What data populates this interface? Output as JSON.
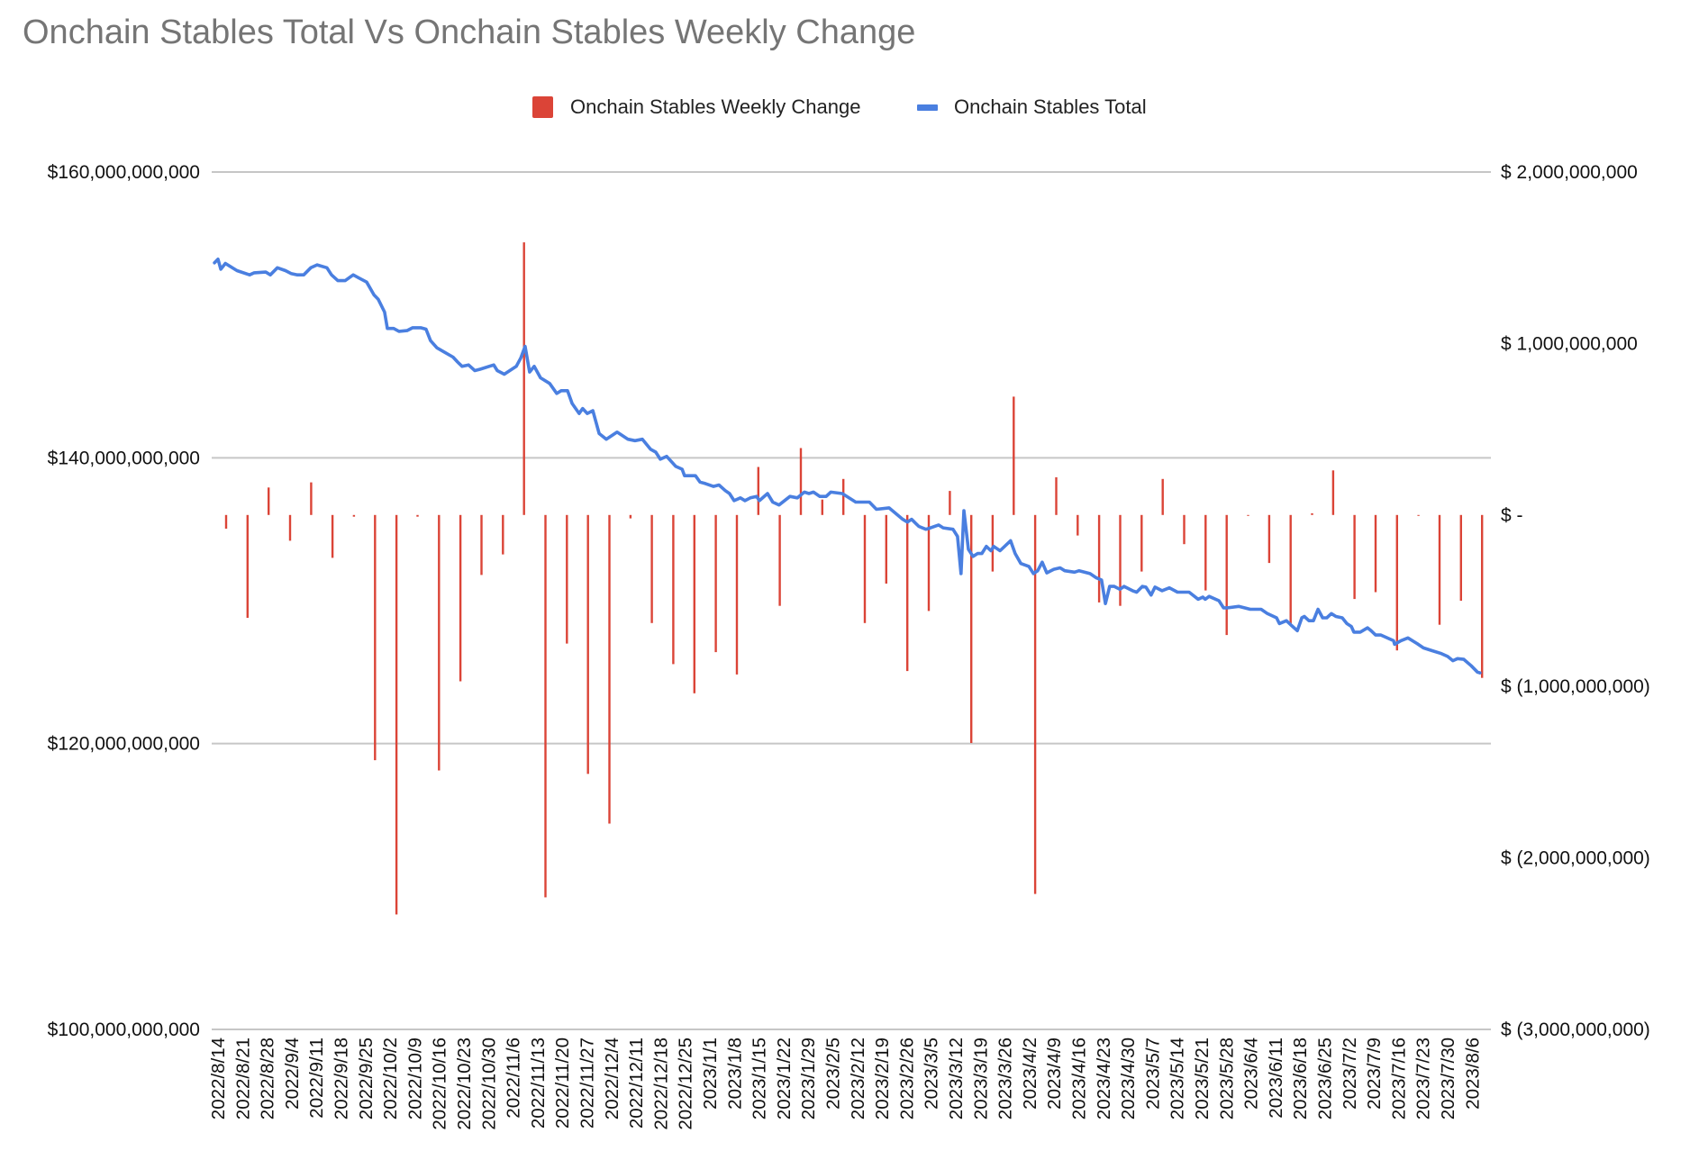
{
  "chart_data": {
    "type": "bar+line",
    "title": "Onchain Stables Total Vs Onchain Stables Weekly Change",
    "legend": {
      "position": "top",
      "entries": [
        {
          "name": "Onchain Stables Weekly Change",
          "color": "#db4437",
          "marker": "square"
        },
        {
          "name": "Onchain Stables Total",
          "color": "#4a7fe0",
          "marker": "line"
        }
      ]
    },
    "grid": true,
    "x_axis": {
      "unit": "days since 2022/8/14",
      "tick_labels": [
        "2022/8/14",
        "2022/8/21",
        "2022/8/28",
        "2022/9/4",
        "2022/9/11",
        "2022/9/18",
        "2022/9/25",
        "2022/10/2",
        "2022/10/9",
        "2022/10/16",
        "2022/10/23",
        "2022/10/30",
        "2022/11/6",
        "2022/11/13",
        "2022/11/20",
        "2022/11/27",
        "2022/12/4",
        "2022/12/11",
        "2022/12/18",
        "2022/12/25",
        "2023/1/1",
        "2023/1/8",
        "2023/1/15",
        "2023/1/22",
        "2023/1/29",
        "2023/2/5",
        "2023/2/12",
        "2023/2/19",
        "2023/2/26",
        "2023/3/5",
        "2023/3/12",
        "2023/3/19",
        "2023/3/26",
        "2023/4/2",
        "2023/4/9",
        "2023/4/16",
        "2023/4/23",
        "2023/4/30",
        "2023/5/7",
        "2023/5/14",
        "2023/5/21",
        "2023/5/28",
        "2023/6/4",
        "2023/6/11",
        "2023/6/18",
        "2023/6/25",
        "2023/7/2",
        "2023/7/9",
        "2023/7/16",
        "2023/7/23",
        "2023/7/30",
        "2023/8/6"
      ],
      "range": [
        -1.3,
        362
      ]
    },
    "y_left": {
      "series": "Onchain Stables Total",
      "range": [
        100000000000,
        160000000000
      ],
      "ticks": [
        {
          "value": 160000000000,
          "label": "$160,000,000,000"
        },
        {
          "value": 140000000000,
          "label": "$140,000,000,000"
        },
        {
          "value": 120000000000,
          "label": "$120,000,000,000"
        },
        {
          "value": 100000000000,
          "label": "$100,000,000,000"
        }
      ]
    },
    "y_right": {
      "series": "Onchain Stables Weekly Change",
      "range": [
        -3000000000,
        2000000000
      ],
      "ticks": [
        {
          "value": 2000000000,
          "label": "$ 2,000,000,000"
        },
        {
          "value": 1000000000,
          "label": "$ 1,000,000,000"
        },
        {
          "value": 0,
          "label": "$ -"
        },
        {
          "value": -1000000000,
          "label": "$ (1,000,000,000)"
        },
        {
          "value": -2000000000,
          "label": "$ (2,000,000,000)"
        },
        {
          "value": -3000000000,
          "label": "$ (3,000,000,000)"
        }
      ]
    },
    "series": [
      {
        "name": "Onchain Stables Weekly Change",
        "type": "bar",
        "axis": "right",
        "unit": "USD billions",
        "x": [
          2.3,
          8.4,
          14.4,
          20.5,
          26.5,
          32.6,
          38.7,
          44.7,
          50.8,
          56.8,
          62.9,
          69.0,
          75.0,
          81.1,
          87.1,
          93.2,
          99.3,
          105.3,
          111.4,
          117.4,
          123.5,
          129.6,
          135.6,
          141.7,
          147.7,
          153.8,
          159.9,
          165.9,
          172.0,
          178.0,
          184.1,
          190.2,
          196.2,
          202.3,
          208.3,
          214.4,
          220.5,
          226.5,
          232.6,
          238.6,
          244.7,
          250.8,
          256.8,
          262.9,
          268.9,
          275.0,
          281.1,
          287.1,
          293.2,
          299.2,
          305.3,
          311.4,
          317.4,
          323.5,
          329.5,
          335.6,
          341.7,
          347.7,
          353.8,
          359.8
        ],
        "values": [
          -0.08,
          -0.6,
          0.16,
          -0.15,
          0.19,
          -0.25,
          -0.01,
          -1.43,
          -2.33,
          -0.01,
          -1.49,
          -0.97,
          -0.35,
          -0.23,
          1.59,
          -2.23,
          -0.75,
          -1.51,
          -1.8,
          -0.02,
          -0.63,
          -0.87,
          -1.04,
          -0.8,
          -0.93,
          0.28,
          -0.53,
          0.39,
          0.09,
          0.21,
          -0.63,
          -0.4,
          -0.91,
          -0.56,
          0.14,
          -1.33,
          -0.33,
          0.69,
          -2.21,
          0.22,
          -0.12,
          -0.51,
          -0.53,
          -0.33,
          0.21,
          -0.17,
          -0.44,
          -0.7,
          0.0,
          -0.28,
          -0.64,
          0.01,
          0.26,
          -0.49,
          -0.45,
          -0.79,
          -0.005,
          -0.64,
          -0.5,
          -0.95
        ]
      },
      {
        "name": "Onchain Stables Total",
        "type": "line",
        "axis": "left",
        "unit": "USD billions",
        "points": [
          [
            -1.0,
            153.65
          ],
          [
            0,
            153.9
          ],
          [
            0.8,
            153.2
          ],
          [
            2.1,
            153.6
          ],
          [
            5.4,
            153.1
          ],
          [
            9.0,
            152.8
          ],
          [
            10.3,
            152.95
          ],
          [
            13.6,
            153.0
          ],
          [
            14.9,
            152.8
          ],
          [
            16.9,
            153.3
          ],
          [
            19.2,
            153.1
          ],
          [
            20.8,
            152.9
          ],
          [
            22.6,
            152.8
          ],
          [
            24.4,
            152.8
          ],
          [
            26.4,
            153.3
          ],
          [
            28.2,
            153.5
          ],
          [
            31.0,
            153.3
          ],
          [
            32.3,
            152.8
          ],
          [
            34.1,
            152.4
          ],
          [
            36.2,
            152.4
          ],
          [
            38.5,
            152.8
          ],
          [
            40.0,
            152.6
          ],
          [
            42.3,
            152.3
          ],
          [
            44.4,
            151.4
          ],
          [
            45.6,
            151.1
          ],
          [
            47.4,
            150.2
          ],
          [
            48.2,
            149.05
          ],
          [
            50.0,
            149.05
          ],
          [
            51.5,
            148.85
          ],
          [
            53.8,
            148.9
          ],
          [
            55.4,
            149.1
          ],
          [
            57.7,
            149.1
          ],
          [
            59.2,
            149.0
          ],
          [
            60.5,
            148.2
          ],
          [
            62.3,
            147.7
          ],
          [
            64.4,
            147.4
          ],
          [
            66.9,
            147.05
          ],
          [
            68.2,
            146.7
          ],
          [
            69.5,
            146.4
          ],
          [
            71.3,
            146.5
          ],
          [
            73.1,
            146.1
          ],
          [
            74.6,
            146.2
          ],
          [
            78.5,
            146.5
          ],
          [
            79.5,
            146.1
          ],
          [
            81.5,
            145.85
          ],
          [
            84.9,
            146.4
          ],
          [
            86.2,
            147.0
          ],
          [
            87.4,
            147.8
          ],
          [
            88.7,
            146.0
          ],
          [
            90.0,
            146.4
          ],
          [
            91.8,
            145.6
          ],
          [
            94.4,
            145.2
          ],
          [
            96.4,
            144.5
          ],
          [
            97.7,
            144.7
          ],
          [
            99.5,
            144.7
          ],
          [
            100.8,
            143.8
          ],
          [
            102.8,
            143.1
          ],
          [
            103.8,
            143.45
          ],
          [
            105.1,
            143.1
          ],
          [
            106.7,
            143.3
          ],
          [
            108.5,
            141.7
          ],
          [
            110.5,
            141.3
          ],
          [
            113.6,
            141.8
          ],
          [
            116.7,
            141.3
          ],
          [
            118.7,
            141.2
          ],
          [
            120.8,
            141.3
          ],
          [
            123.1,
            140.6
          ],
          [
            124.6,
            140.4
          ],
          [
            125.9,
            139.9
          ],
          [
            127.7,
            140.1
          ],
          [
            130.3,
            139.4
          ],
          [
            132.1,
            139.2
          ],
          [
            132.8,
            138.75
          ],
          [
            135.9,
            138.75
          ],
          [
            137.2,
            138.3
          ],
          [
            138.7,
            138.2
          ],
          [
            141.0,
            138.0
          ],
          [
            142.6,
            138.1
          ],
          [
            144.4,
            137.7
          ],
          [
            145.6,
            137.5
          ],
          [
            146.9,
            137.0
          ],
          [
            148.7,
            137.2
          ],
          [
            150.0,
            137.0
          ],
          [
            151.5,
            137.2
          ],
          [
            153.3,
            137.3
          ],
          [
            154.1,
            137.0
          ],
          [
            156.4,
            137.5
          ],
          [
            157.9,
            136.9
          ],
          [
            159.7,
            136.7
          ],
          [
            162.8,
            137.3
          ],
          [
            164.9,
            137.2
          ],
          [
            166.9,
            137.6
          ],
          [
            168.2,
            137.5
          ],
          [
            169.5,
            137.6
          ],
          [
            171.3,
            137.3
          ],
          [
            173.1,
            137.3
          ],
          [
            174.4,
            137.6
          ],
          [
            177.7,
            137.5
          ],
          [
            181.5,
            136.9
          ],
          [
            183.6,
            136.9
          ],
          [
            185.4,
            136.9
          ],
          [
            187.4,
            136.4
          ],
          [
            191.0,
            136.5
          ],
          [
            194.9,
            135.7
          ],
          [
            196.2,
            135.5
          ],
          [
            197.4,
            135.7
          ],
          [
            199.5,
            135.2
          ],
          [
            201.5,
            135.0
          ],
          [
            202.8,
            135.1
          ],
          [
            205.1,
            135.3
          ],
          [
            206.4,
            135.1
          ],
          [
            209.2,
            135.0
          ],
          [
            210.5,
            134.5
          ],
          [
            211.5,
            131.9
          ],
          [
            212.3,
            136.3
          ],
          [
            213.6,
            133.6
          ],
          [
            214.9,
            133.1
          ],
          [
            216.2,
            133.3
          ],
          [
            217.4,
            133.3
          ],
          [
            218.7,
            133.8
          ],
          [
            220.0,
            133.5
          ],
          [
            220.8,
            133.8
          ],
          [
            222.6,
            133.5
          ],
          [
            225.6,
            134.2
          ],
          [
            226.9,
            133.3
          ],
          [
            228.5,
            132.6
          ],
          [
            230.8,
            132.4
          ],
          [
            232.1,
            131.9
          ],
          [
            233.3,
            132.1
          ],
          [
            234.6,
            132.7
          ],
          [
            235.9,
            131.95
          ],
          [
            237.9,
            132.2
          ],
          [
            239.7,
            132.3
          ],
          [
            241.0,
            132.1
          ],
          [
            243.8,
            132.0
          ],
          [
            245.1,
            132.1
          ],
          [
            248.2,
            131.9
          ],
          [
            250.0,
            131.6
          ],
          [
            251.5,
            131.45
          ],
          [
            252.6,
            129.8
          ],
          [
            253.8,
            131.0
          ],
          [
            255.1,
            131.0
          ],
          [
            256.7,
            130.8
          ],
          [
            257.9,
            131.0
          ],
          [
            260.3,
            130.7
          ],
          [
            261.5,
            130.6
          ],
          [
            263.1,
            131.0
          ],
          [
            264.1,
            130.95
          ],
          [
            265.6,
            130.4
          ],
          [
            266.7,
            130.95
          ],
          [
            268.7,
            130.7
          ],
          [
            270.8,
            130.9
          ],
          [
            273.1,
            130.6
          ],
          [
            276.4,
            130.6
          ],
          [
            279.0,
            130.1
          ],
          [
            280.3,
            130.25
          ],
          [
            281.0,
            130.1
          ],
          [
            282.1,
            130.3
          ],
          [
            284.9,
            130.0
          ],
          [
            286.2,
            129.5
          ],
          [
            287.4,
            129.5
          ],
          [
            290.5,
            129.6
          ],
          [
            293.8,
            129.4
          ],
          [
            296.9,
            129.4
          ],
          [
            298.7,
            129.1
          ],
          [
            301.3,
            128.8
          ],
          [
            302.1,
            128.4
          ],
          [
            304.1,
            128.6
          ],
          [
            305.4,
            128.3
          ],
          [
            307.2,
            127.9
          ],
          [
            308.5,
            128.8
          ],
          [
            309.2,
            128.9
          ],
          [
            310.5,
            128.6
          ],
          [
            311.8,
            128.6
          ],
          [
            313.1,
            129.4
          ],
          [
            314.4,
            128.8
          ],
          [
            315.6,
            128.8
          ],
          [
            316.9,
            129.1
          ],
          [
            318.2,
            128.9
          ],
          [
            320.0,
            128.8
          ],
          [
            321.3,
            128.4
          ],
          [
            322.6,
            128.2
          ],
          [
            323.3,
            127.8
          ],
          [
            325.1,
            127.8
          ],
          [
            327.2,
            128.1
          ],
          [
            328.2,
            127.9
          ],
          [
            329.5,
            127.6
          ],
          [
            331.0,
            127.6
          ],
          [
            334.6,
            127.2
          ],
          [
            334.9,
            126.95
          ],
          [
            336.7,
            127.2
          ],
          [
            338.7,
            127.4
          ],
          [
            341.3,
            127.0
          ],
          [
            343.1,
            126.7
          ],
          [
            345.6,
            126.5
          ],
          [
            348.2,
            126.3
          ],
          [
            350.0,
            126.1
          ],
          [
            351.5,
            125.8
          ],
          [
            352.8,
            125.95
          ],
          [
            354.6,
            125.9
          ],
          [
            356.7,
            125.45
          ],
          [
            358.5,
            125.0
          ],
          [
            359.2,
            124.95
          ]
        ]
      }
    ]
  }
}
